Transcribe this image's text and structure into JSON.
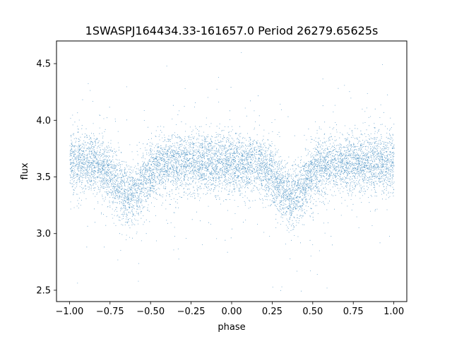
{
  "chart_data": {
    "type": "scatter",
    "title": "1SWASPJ164434.33-161657.0 Period 26279.65625s",
    "xlabel": "phase",
    "ylabel": "flux",
    "xlim": [
      -1.08,
      1.08
    ],
    "ylim": [
      2.4,
      4.7
    ],
    "xticks": [
      -1.0,
      -0.75,
      -0.5,
      -0.25,
      0.0,
      0.25,
      0.5,
      0.75,
      1.0
    ],
    "xtick_labels": [
      "−1.00",
      "−0.75",
      "−0.50",
      "−0.25",
      "0.00",
      "0.25",
      "0.50",
      "0.75",
      "1.00"
    ],
    "yticks": [
      2.5,
      3.0,
      3.5,
      4.0,
      4.5
    ],
    "ytick_labels": [
      "2.5",
      "3.0",
      "3.5",
      "4.0",
      "4.5"
    ],
    "grid": false,
    "legend": "none",
    "series": [
      {
        "color": "#1f77b4",
        "marker_size": "tiny",
        "x_range": [
          -1.0,
          1.0
        ],
        "baseline_flux": 3.62,
        "dips": [
          {
            "phase_center": -0.63,
            "min_flux": 3.33
          },
          {
            "phase_center": 0.37,
            "min_flux": 3.33
          }
        ],
        "scatter_sd": 0.13,
        "approx_points": 9000
      }
    ]
  }
}
